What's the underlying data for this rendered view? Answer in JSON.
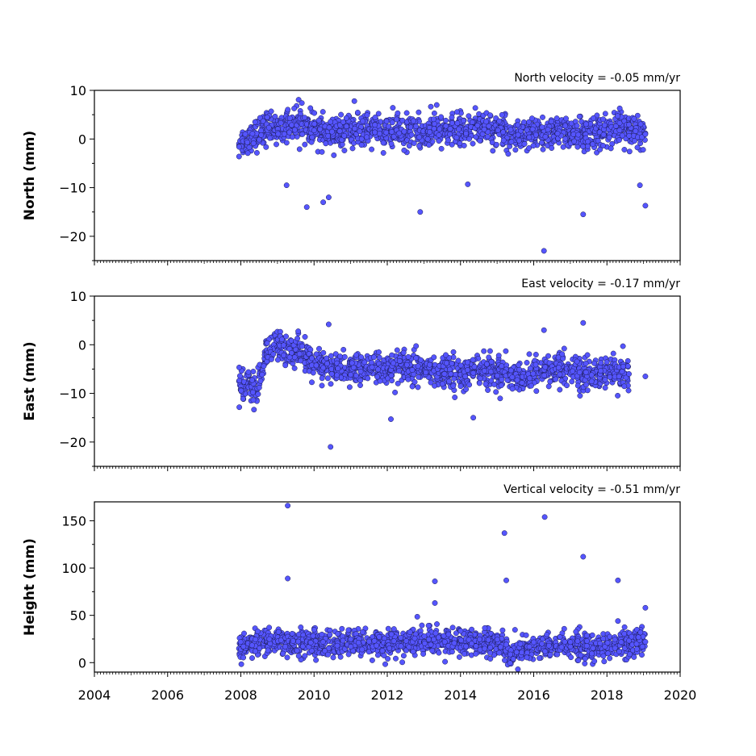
{
  "chart_data": [
    {
      "type": "scatter",
      "title": "North velocity = -0.05 mm/yr",
      "ylabel": "North (mm)",
      "xlim": [
        2004,
        2020
      ],
      "ylim": [
        -25,
        10
      ],
      "yticks": [
        -20,
        -10,
        0,
        10
      ],
      "ytick_labels": [
        "−20",
        "−10",
        "0",
        "10"
      ],
      "marker_color": "#5555ff",
      "series": [
        {
          "x": [
            2007.95,
            2008.3,
            2008.7,
            2009.0,
            2009.3,
            2009.6,
            2009.9,
            2010.3,
            2010.7,
            2011.1,
            2011.6,
            2012.1,
            2012.6,
            2013.1,
            2013.6,
            2014.1,
            2014.6,
            2015.0,
            2015.35,
            2015.8,
            2016.2,
            2016.6,
            2017.0,
            2017.4,
            2017.8,
            2018.2,
            2018.6,
            2019.05,
            2009.25,
            2009.8,
            2010.25,
            2010.4,
            2012.9,
            2016.28,
            2017.35,
            2018.9,
            2019.05,
            2011.1,
            2013.35,
            2014.2,
            2018.35
          ],
          "y": [
            -1.0,
            0.5,
            2.0,
            2.5,
            3.0,
            3.5,
            2.0,
            1.0,
            1.5,
            1.5,
            2.0,
            1.5,
            1.5,
            1.5,
            2.0,
            2.0,
            2.5,
            2.0,
            1.0,
            0.5,
            1.0,
            1.5,
            1.0,
            1.0,
            1.5,
            2.0,
            2.0,
            1.0,
            -9.5,
            -14.0,
            -13.0,
            -12.0,
            -15.0,
            -23.0,
            -15.5,
            -9.5,
            -13.7,
            7.8,
            7.0,
            -9.3,
            6.3
          ]
        }
      ]
    },
    {
      "type": "scatter",
      "title": "East velocity = -0.17 mm/yr",
      "ylabel": "East (mm)",
      "xlim": [
        2004,
        2020
      ],
      "ylim": [
        -25,
        10
      ],
      "yticks": [
        -20,
        -10,
        0,
        10
      ],
      "ytick_labels": [
        "−20",
        "−10",
        "0",
        "10"
      ],
      "marker_color": "#5555ff",
      "series": [
        {
          "x": [
            2007.95,
            2008.2,
            2008.45,
            2008.7,
            2009.0,
            2009.3,
            2009.6,
            2009.85,
            2010.2,
            2010.6,
            2011.0,
            2011.5,
            2012.0,
            2012.5,
            2013.0,
            2013.5,
            2014.0,
            2014.5,
            2015.0,
            2015.35,
            2015.8,
            2016.2,
            2016.6,
            2017.0,
            2017.4,
            2017.8,
            2018.2,
            2018.6,
            2019.05,
            2010.45,
            2012.1,
            2014.35,
            2010.4,
            2017.35,
            2016.28
          ],
          "y": [
            -7.5,
            -8.0,
            -9.0,
            -1.5,
            -0.5,
            -0.5,
            -1.5,
            -3.5,
            -4.5,
            -5.0,
            -5.0,
            -5.0,
            -5.0,
            -5.0,
            -5.5,
            -5.5,
            -5.5,
            -5.0,
            -5.5,
            -6.0,
            -6.5,
            -5.5,
            -5.0,
            -5.0,
            -6.0,
            -6.0,
            -6.0,
            -6.0,
            -6.5,
            -21.0,
            -15.3,
            -15.0,
            4.2,
            4.5,
            3.0
          ]
        }
      ]
    },
    {
      "type": "scatter",
      "title": "Vertical velocity = -0.51 mm/yr",
      "ylabel": "Height (mm)",
      "xlabel": "",
      "xlim": [
        2004,
        2020
      ],
      "ylim": [
        -10,
        170
      ],
      "yticks": [
        0,
        50,
        100,
        150
      ],
      "ytick_labels": [
        "0",
        "50",
        "100",
        "150"
      ],
      "xticks": [
        2004,
        2006,
        2008,
        2010,
        2012,
        2014,
        2016,
        2018,
        2020
      ],
      "xtick_labels": [
        "2004",
        "2006",
        "2008",
        "2010",
        "2012",
        "2014",
        "2016",
        "2018",
        "2020"
      ],
      "marker_color": "#5555ff",
      "series": [
        {
          "x": [
            2007.95,
            2008.3,
            2008.7,
            2009.0,
            2009.4,
            2009.8,
            2010.2,
            2010.6,
            2011.0,
            2011.5,
            2012.0,
            2012.5,
            2013.0,
            2013.5,
            2014.0,
            2014.5,
            2015.0,
            2015.35,
            2015.8,
            2016.2,
            2016.6,
            2017.0,
            2017.4,
            2017.8,
            2018.2,
            2018.6,
            2019.05,
            2009.28,
            2009.28,
            2013.3,
            2013.3,
            2015.25,
            2015.2,
            2016.3,
            2017.35,
            2018.3,
            2019.05,
            2018.3
          ],
          "y": [
            15,
            20,
            22,
            25,
            20,
            20,
            20,
            18,
            22,
            20,
            20,
            22,
            22,
            23,
            22,
            22,
            22,
            10,
            15,
            15,
            17,
            20,
            15,
            15,
            18,
            20,
            22,
            166,
            89,
            86,
            63,
            87,
            137,
            154,
            112,
            87,
            58,
            44
          ]
        }
      ]
    }
  ]
}
